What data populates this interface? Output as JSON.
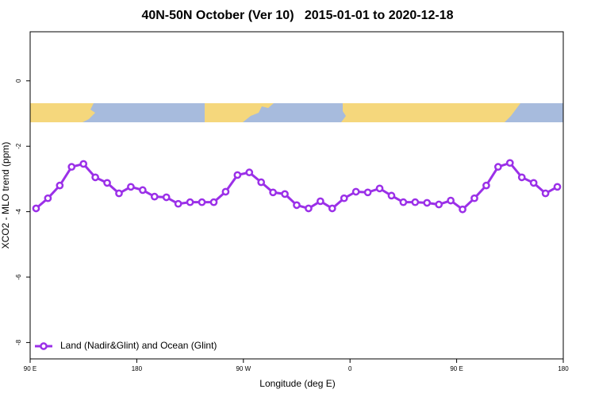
{
  "chart_data": {
    "type": "line",
    "title": "40N-50N October (Ver 10)   2015-01-01 to 2020-12-18",
    "x_label": "Longitude (deg E)",
    "y_label": "XCO2 - MLO trend (ppm)",
    "xlim": [
      90,
      540
    ],
    "ylim": [
      -8.5,
      1.5
    ],
    "xticks": [
      {
        "value": 90,
        "label": "90 E"
      },
      {
        "value": 180,
        "label": "180"
      },
      {
        "value": 270,
        "label": "90 W"
      },
      {
        "value": 360,
        "label": "0"
      },
      {
        "value": 450,
        "label": "90 E"
      },
      {
        "value": 540,
        "label": "180"
      }
    ],
    "yticks": [
      0,
      -2,
      -4,
      -6,
      -8
    ],
    "legend": "bottomleft",
    "x": [
      95,
      105,
      115,
      125,
      135,
      145,
      155,
      165,
      175,
      185,
      195,
      205,
      215,
      225,
      235,
      245,
      255,
      265,
      275,
      285,
      295,
      305,
      315,
      325,
      335,
      345,
      355,
      365,
      375,
      385,
      395,
      405,
      415,
      425,
      435,
      445,
      455,
      465,
      475,
      485,
      495,
      505,
      515,
      525,
      535
    ],
    "series": [
      {
        "name": "Land (Nadir&Glint) and Ocean (Glint)",
        "color": "#9b30e8",
        "values": [
          -3.9,
          -3.59,
          -3.2,
          -2.63,
          -2.54,
          -2.95,
          -3.12,
          -3.44,
          -3.24,
          -3.34,
          -3.54,
          -3.56,
          -3.76,
          -3.71,
          -3.71,
          -3.71,
          -3.39,
          -2.88,
          -2.8,
          -3.1,
          -3.41,
          -3.46,
          -3.8,
          -3.9,
          -3.68,
          -3.9,
          -3.59,
          -3.39,
          -3.41,
          -3.29,
          -3.51,
          -3.71,
          -3.71,
          -3.73,
          -3.78,
          -3.66,
          -3.93,
          -3.59,
          -3.2,
          -2.63,
          -2.51,
          -2.95,
          -3.12,
          -3.44,
          -3.24
        ]
      }
    ]
  }
}
